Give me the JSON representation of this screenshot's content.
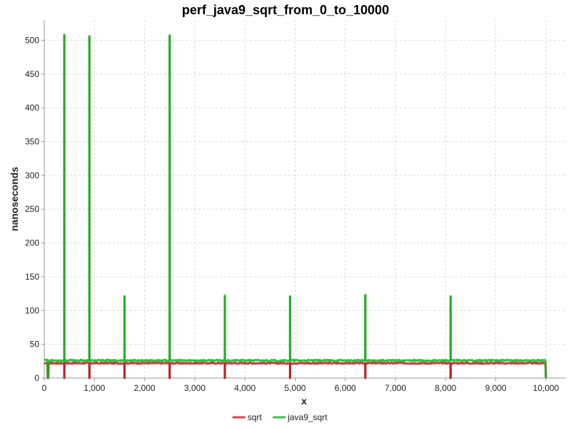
{
  "chart_data": {
    "type": "line",
    "title": "perf_java9_sqrt_from_0_to_10000",
    "xlabel": "x",
    "ylabel": "nanoseconds",
    "xlim": [
      0,
      10400
    ],
    "ylim": [
      0,
      530
    ],
    "x_ticks": [
      0,
      1000,
      2000,
      3000,
      4000,
      5000,
      6000,
      7000,
      8000,
      9000,
      10000
    ],
    "x_tick_labels": [
      "0",
      "1,000",
      "2,000",
      "3,000",
      "4,000",
      "5,000",
      "6,000",
      "7,000",
      "8,000",
      "9,000",
      "10,000"
    ],
    "y_ticks": [
      0,
      50,
      100,
      150,
      200,
      250,
      300,
      350,
      400,
      450,
      500
    ],
    "y_tick_labels": [
      "0",
      "50",
      "100",
      "150",
      "200",
      "250",
      "300",
      "350",
      "400",
      "450",
      "500"
    ],
    "grid": true,
    "legend_position": "bottom-center",
    "series": [
      {
        "name": "sqrt",
        "color": "#b22222",
        "legend_color": "#c0504d",
        "baseline": 22,
        "start": [
          [
            0,
            22
          ],
          [
            60,
            22
          ],
          [
            70,
            0
          ],
          [
            80,
            0
          ],
          [
            90,
            22
          ]
        ],
        "dips": [
          [
            400,
            0
          ],
          [
            900,
            0
          ],
          [
            1600,
            0
          ],
          [
            2500,
            0
          ],
          [
            3600,
            0
          ],
          [
            4900,
            0
          ],
          [
            6400,
            0
          ],
          [
            8100,
            0
          ]
        ],
        "end": [
          [
            9990,
            22
          ],
          [
            10000,
            0
          ]
        ]
      },
      {
        "name": "java9_sqrt",
        "color": "#22aa22",
        "legend_color": "#4cb84c",
        "baseline": 26,
        "start": [
          [
            0,
            27
          ],
          [
            60,
            27
          ],
          [
            70,
            0
          ],
          [
            80,
            0
          ],
          [
            90,
            26
          ]
        ],
        "spikes": [
          [
            400,
            508
          ],
          [
            900,
            506
          ],
          [
            1600,
            121
          ],
          [
            2500,
            507
          ],
          [
            3600,
            122
          ],
          [
            4900,
            121
          ],
          [
            6400,
            123
          ],
          [
            8100,
            121
          ]
        ],
        "end": [
          [
            9990,
            26
          ],
          [
            10000,
            0
          ]
        ]
      }
    ]
  }
}
